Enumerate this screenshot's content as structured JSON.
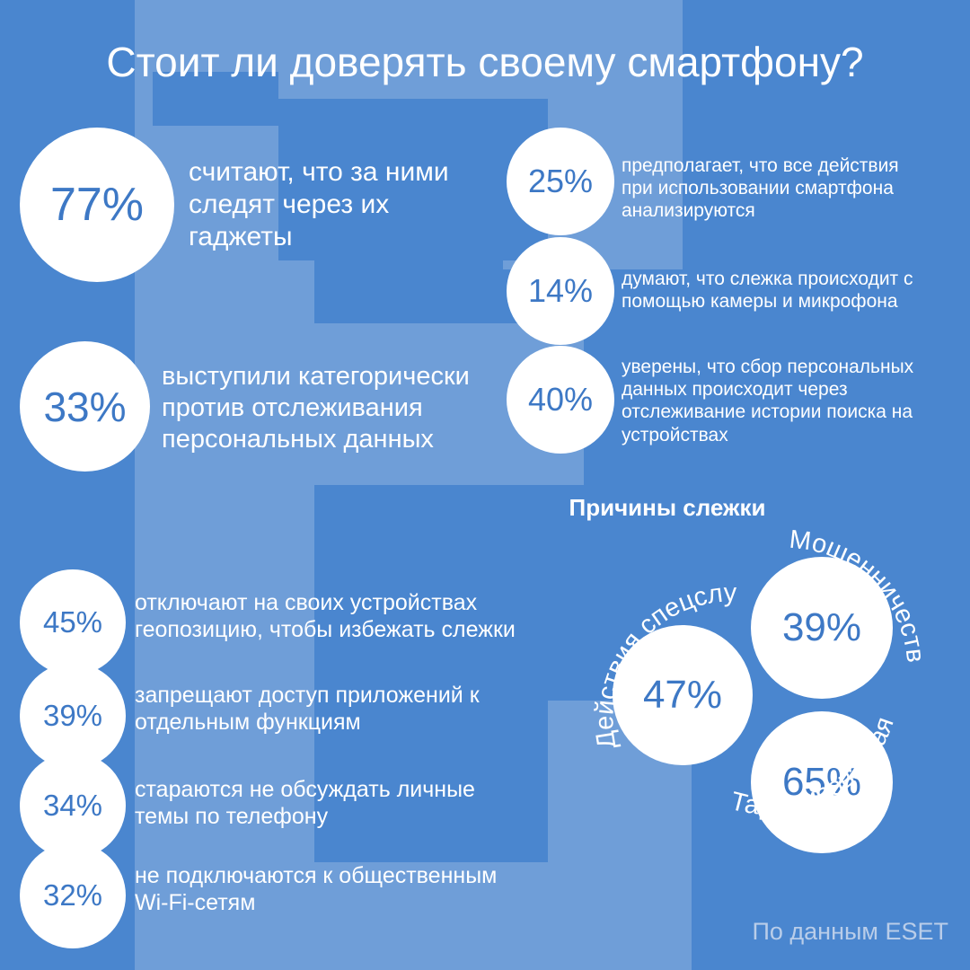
{
  "title": "Стоит ли доверять своему смартфону?",
  "colors": {
    "background": "#4a86cf",
    "shape": "#6f9ed8",
    "circle": "#ffffff",
    "number": "#3d78c5"
  },
  "stats_top_left": [
    {
      "value": "77%",
      "text": "считают, что за ними следят через их гаджеты"
    },
    {
      "value": "33%",
      "text": "выступили категорически против отслеживания персональных данных"
    }
  ],
  "stats_top_right": [
    {
      "value": "25%",
      "text": "предполагает, что все действия при использовании смартфона анализируются"
    },
    {
      "value": "14%",
      "text": "думают, что слежка происходит с помощью камеры и микрофона"
    },
    {
      "value": "40%",
      "text": "уверены, что сбор персональных данных происходит через отслеживание истории поиска на устройствах"
    }
  ],
  "stats_bottom_left": [
    {
      "value": "45%",
      "text": "отключают на своих устройствах геопозицию, чтобы избежать слежки"
    },
    {
      "value": "39%",
      "text": "запрещают доступ приложений к отдельным функциям"
    },
    {
      "value": "34%",
      "text": "стараются не обсуждать личные темы по телефону"
    },
    {
      "value": "32%",
      "text": "не подключаются к общественным Wi-Fi-сетям"
    }
  ],
  "reasons": {
    "title": "Причины слежки",
    "items": [
      {
        "value": "47%",
        "label": "Действия спецслужб"
      },
      {
        "value": "39%",
        "label": "Мошенничество"
      },
      {
        "value": "65%",
        "label": "Таргетированная реклама"
      }
    ]
  },
  "source": "По данным ESET"
}
